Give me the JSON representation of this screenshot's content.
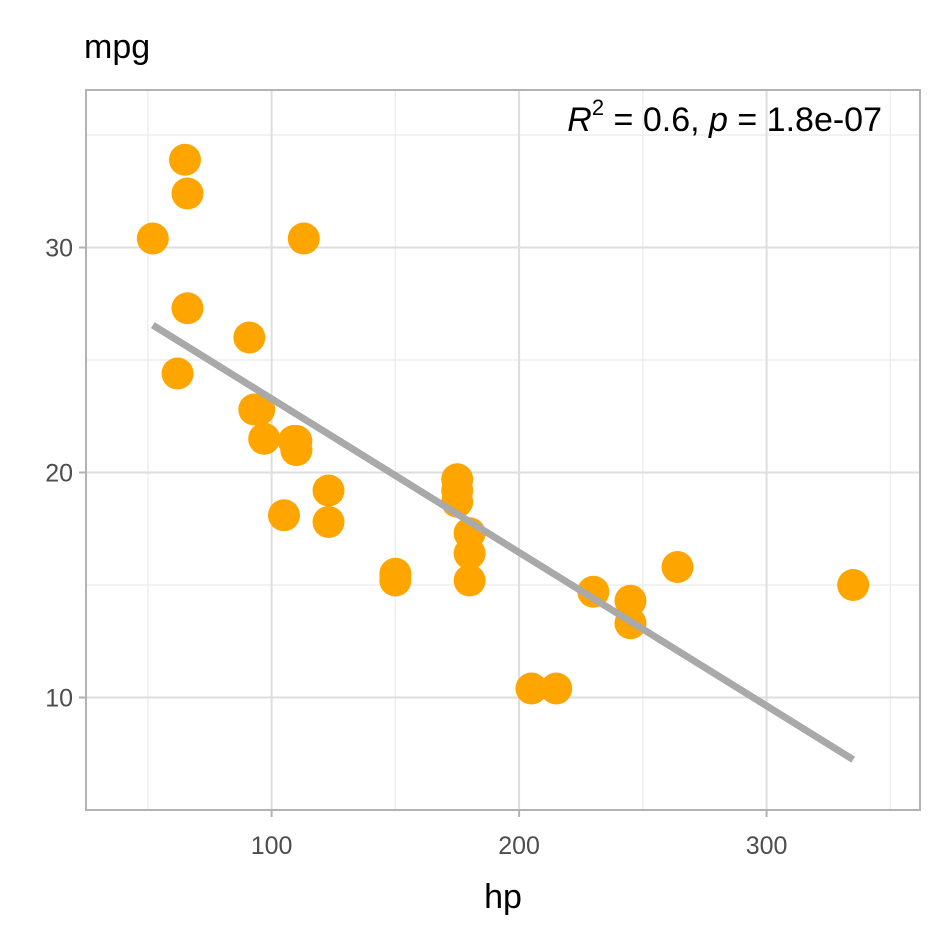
{
  "chart_data": {
    "type": "scatter",
    "ylabel": "mpg",
    "xlabel": "hp",
    "xlim": [
      25,
      362
    ],
    "ylim": [
      5,
      37
    ],
    "x_ticks": [
      100,
      200,
      300
    ],
    "x_minor_ticks": [
      50,
      150,
      250,
      350
    ],
    "y_ticks": [
      10,
      20,
      30
    ],
    "y_minor_ticks": [
      15,
      25,
      35
    ],
    "grid": true,
    "point_color": "#FFA500",
    "line_color": "#A9A9A9",
    "annotation": {
      "r2_label": "R",
      "r2_sup": "2",
      "r2_rest": " = 0.6, ",
      "p_label": "p",
      "p_rest": " = 1.8e-07"
    },
    "points": [
      {
        "x": 110,
        "y": 21.0
      },
      {
        "x": 110,
        "y": 21.0
      },
      {
        "x": 93,
        "y": 22.8
      },
      {
        "x": 110,
        "y": 21.4
      },
      {
        "x": 175,
        "y": 18.7
      },
      {
        "x": 105,
        "y": 18.1
      },
      {
        "x": 245,
        "y": 14.3
      },
      {
        "x": 62,
        "y": 24.4
      },
      {
        "x": 95,
        "y": 22.8
      },
      {
        "x": 123,
        "y": 19.2
      },
      {
        "x": 123,
        "y": 17.8
      },
      {
        "x": 180,
        "y": 16.4
      },
      {
        "x": 180,
        "y": 17.3
      },
      {
        "x": 180,
        "y": 15.2
      },
      {
        "x": 205,
        "y": 10.4
      },
      {
        "x": 215,
        "y": 10.4
      },
      {
        "x": 230,
        "y": 14.7
      },
      {
        "x": 66,
        "y": 32.4
      },
      {
        "x": 52,
        "y": 30.4
      },
      {
        "x": 65,
        "y": 33.9
      },
      {
        "x": 97,
        "y": 21.5
      },
      {
        "x": 150,
        "y": 15.5
      },
      {
        "x": 150,
        "y": 15.2
      },
      {
        "x": 245,
        "y": 13.3
      },
      {
        "x": 175,
        "y": 19.2
      },
      {
        "x": 66,
        "y": 27.3
      },
      {
        "x": 91,
        "y": 26.0
      },
      {
        "x": 113,
        "y": 30.4
      },
      {
        "x": 264,
        "y": 15.8
      },
      {
        "x": 175,
        "y": 19.7
      },
      {
        "x": 335,
        "y": 15.0
      },
      {
        "x": 109,
        "y": 21.4
      }
    ],
    "regression": {
      "x1": 52,
      "y1": 26.55,
      "x2": 335,
      "y2": 7.24
    }
  }
}
